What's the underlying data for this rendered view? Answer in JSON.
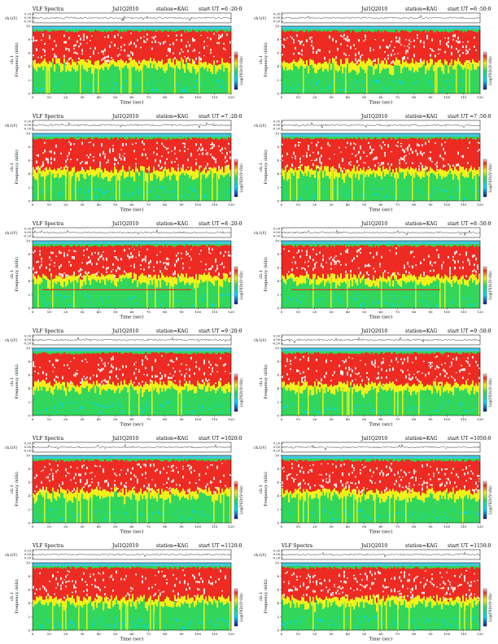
{
  "colors": {
    "low": "#00d9ff",
    "mid": "#31d65b",
    "yellow": "#f1f11b",
    "red": "#ee2b22",
    "white": "#ffffff",
    "topband": "#46c8dd"
  },
  "chart_data": [
    {
      "type": "heatmap",
      "title": "VLF Spectra",
      "date": "Jul1Q2010",
      "station": "station=KAG",
      "start_ut": "start  UT =6 :20:0",
      "ylabel_top": "ch.1(V)",
      "ylabel_main": "ch.1\nFrequency (kHz)",
      "xlabel": "Time  (sec)",
      "colorbar_label": "Log(PSD)(V²/Hz)",
      "x_range": [
        0,
        120
      ],
      "y_range": [
        0,
        10
      ],
      "y_ticks": [
        0,
        2,
        4,
        6,
        8,
        10
      ],
      "x_ticks": [
        0,
        10,
        20,
        30,
        40,
        50,
        60,
        70,
        80,
        90,
        100,
        110,
        120
      ],
      "top_ticks": [
        "0.20",
        "0.00",
        "-0.20"
      ]
    },
    {
      "type": "heatmap",
      "title": "",
      "date": "Jul1Q2010",
      "station": "station=KAG",
      "start_ut": "start  UT =6 :50:0",
      "ylabel_top": "ch.1(V)",
      "ylabel_main": "ch.1\nFrequency (kHz)",
      "xlabel": "Time  (sec)",
      "colorbar_label": "Log(PSD)(V²/Hz)",
      "x_range": [
        0,
        120
      ],
      "y_range": [
        0,
        10
      ],
      "y_ticks": [
        0,
        2,
        4,
        6,
        8,
        10
      ],
      "x_ticks": [
        0,
        10,
        20,
        30,
        40,
        50,
        60,
        70,
        80,
        90,
        100,
        110,
        120
      ],
      "top_ticks": [
        "0.20",
        "0.00",
        "-0.20"
      ]
    },
    {
      "type": "heatmap",
      "title": "VLF Spectra",
      "date": "Jul1Q2010",
      "station": "station=KAG",
      "start_ut": "start  UT =7 :20:0",
      "ylabel_top": "ch.1(V)",
      "ylabel_main": "ch.1\nFrequency (kHz)",
      "xlabel": "Time  (sec)",
      "colorbar_label": "Log(PSD)(V²/Hz)",
      "x_range": [
        0,
        120
      ],
      "y_range": [
        0,
        10
      ],
      "y_ticks": [
        0,
        2,
        4,
        6,
        8,
        10
      ],
      "x_ticks": [
        0,
        10,
        20,
        30,
        40,
        50,
        60,
        70,
        80,
        90,
        100,
        110,
        120
      ],
      "top_ticks": [
        "0.20",
        "0.00",
        "-0.20"
      ]
    },
    {
      "type": "heatmap",
      "title": "",
      "date": "Jul1Q2010",
      "station": "station=KAG",
      "start_ut": "start  UT =7 :50:0",
      "ylabel_top": "ch.1(V)",
      "ylabel_main": "ch.1\nFrequency (kHz)",
      "xlabel": "Time  (sec)",
      "colorbar_label": "Log(PSD)(V²/Hz)",
      "x_range": [
        0,
        120
      ],
      "y_range": [
        0,
        10
      ],
      "y_ticks": [
        0,
        2,
        4,
        6,
        8,
        10
      ],
      "x_ticks": [
        0,
        10,
        20,
        30,
        40,
        50,
        60,
        70,
        80,
        90,
        100,
        110,
        120
      ],
      "top_ticks": [
        "0.20",
        "0.00",
        "-0.20"
      ]
    },
    {
      "type": "heatmap",
      "title": "VLF Spectra",
      "date": "Jul1Q2010",
      "station": "station=KAG",
      "start_ut": "start  UT =8 :20:0",
      "ylabel_top": "ch.1(V)",
      "ylabel_main": "ch.1\nFrequency (kHz)",
      "xlabel": "Time  (sec)",
      "colorbar_label": "Log(PSD)(V²/Hz)",
      "x_range": [
        0,
        120
      ],
      "y_range": [
        0,
        10
      ],
      "y_ticks": [
        0,
        2,
        4,
        6,
        8,
        10
      ],
      "x_ticks": [
        0,
        10,
        20,
        30,
        40,
        50,
        60,
        70,
        80,
        90,
        100,
        110,
        120
      ],
      "top_ticks": [
        "0.20",
        "0.00",
        "-0.20"
      ]
    },
    {
      "type": "heatmap",
      "title": "",
      "date": "Jul1Q2010",
      "station": "station=KAG",
      "start_ut": "start  UT =8 :50:0",
      "ylabel_top": "ch.1(V)",
      "ylabel_main": "ch.1\nFrequency (kHz)",
      "xlabel": "Time  (sec)",
      "colorbar_label": "Log(PSD)(V²/Hz)",
      "x_range": [
        0,
        120
      ],
      "y_range": [
        0,
        10
      ],
      "y_ticks": [
        0,
        2,
        4,
        6,
        8,
        10
      ],
      "x_ticks": [
        0,
        10,
        20,
        30,
        40,
        50,
        60,
        70,
        80,
        90,
        100,
        110,
        120
      ],
      "top_ticks": [
        "0.20",
        "0.00",
        "-0.20"
      ]
    },
    {
      "type": "heatmap",
      "title": "VLF Spectra",
      "date": "Jul1Q2010",
      "station": "station=KAG",
      "start_ut": "start  UT =9 :20:0",
      "ylabel_top": "ch.1(V)",
      "ylabel_main": "ch.1\nFrequency (kHz)",
      "xlabel": "Time  (sec)",
      "colorbar_label": "Log(PSD)(V²/Hz)",
      "x_range": [
        0,
        120
      ],
      "y_range": [
        0,
        10
      ],
      "y_ticks": [
        0,
        2,
        4,
        6,
        8,
        10
      ],
      "x_ticks": [
        0,
        10,
        20,
        30,
        40,
        50,
        60,
        70,
        80,
        90,
        100,
        110,
        120
      ],
      "top_ticks": [
        "0.20",
        "0.00",
        "-0.20"
      ]
    },
    {
      "type": "heatmap",
      "title": "",
      "date": "Jul1Q2010",
      "station": "station=KAG",
      "start_ut": "start  UT =9 :50:0",
      "ylabel_top": "ch.1(V)",
      "ylabel_main": "ch.1\nFrequency (kHz)",
      "xlabel": "Time  (sec)",
      "colorbar_label": "Log(PSD)(V²/Hz)",
      "x_range": [
        0,
        120
      ],
      "y_range": [
        0,
        10
      ],
      "y_ticks": [
        0,
        2,
        4,
        6,
        8,
        10
      ],
      "x_ticks": [
        0,
        10,
        20,
        30,
        40,
        50,
        60,
        70,
        80,
        90,
        100,
        110,
        120
      ],
      "top_ticks": [
        "0.20",
        "0.00",
        "-0.20"
      ]
    },
    {
      "type": "heatmap",
      "title": "VLF Spectra",
      "date": "Jul1Q2010",
      "station": "station=KAG",
      "start_ut": "start  UT =1020:0",
      "ylabel_top": "ch.1(V)",
      "ylabel_main": "ch.1\nFrequency (kHz)",
      "xlabel": "Time  (sec)",
      "colorbar_label": "Log(PSD)(V²/Hz)",
      "x_range": [
        0,
        120
      ],
      "y_range": [
        0,
        10
      ],
      "y_ticks": [
        0,
        2,
        4,
        6,
        8,
        10
      ],
      "x_ticks": [
        0,
        10,
        20,
        30,
        40,
        50,
        60,
        70,
        80,
        90,
        100,
        110,
        120
      ],
      "top_ticks": [
        "0.20",
        "0.00",
        "-0.20"
      ]
    },
    {
      "type": "heatmap",
      "title": "",
      "date": "Jul1Q2010",
      "station": "station=KAG",
      "start_ut": "start  UT =1050:0",
      "ylabel_top": "ch.1(V)",
      "ylabel_main": "ch.1\nFrequency (kHz)",
      "xlabel": "Time  (sec)",
      "colorbar_label": "Log(PSD)(V²/Hz)",
      "x_range": [
        0,
        120
      ],
      "y_range": [
        0,
        10
      ],
      "y_ticks": [
        0,
        2,
        4,
        6,
        8,
        10
      ],
      "x_ticks": [
        0,
        10,
        20,
        30,
        40,
        50,
        60,
        70,
        80,
        90,
        100,
        110,
        120
      ],
      "top_ticks": [
        "0.20",
        "0.00",
        "-0.20"
      ]
    },
    {
      "type": "heatmap",
      "title": "VLF Spectra",
      "date": "Jul1Q2010",
      "station": "station=KAG",
      "start_ut": "start  UT =1120:0",
      "ylabel_top": "ch.1(V)",
      "ylabel_main": "ch.1\nFrequency (kHz)",
      "xlabel": "Time  (sec)",
      "colorbar_label": "Log(PSD)(V²/Hz)",
      "x_range": [
        0,
        120
      ],
      "y_range": [
        0,
        10
      ],
      "y_ticks": [
        0,
        2,
        4,
        6,
        8,
        10
      ],
      "x_ticks": [
        0,
        10,
        20,
        30,
        40,
        50,
        60,
        70,
        80,
        90,
        100,
        110,
        120
      ],
      "top_ticks": [
        "0.20",
        "0.00",
        "-0.20"
      ]
    },
    {
      "type": "heatmap",
      "title": "VLF Spectra",
      "date": "Jul1Q2010",
      "station": "station=KAG",
      "start_ut": "start  UT =1150:0",
      "ylabel_top": "ch.1(V)",
      "ylabel_main": "ch.1\nFrequency (kHz)",
      "xlabel": "Time  (sec)",
      "colorbar_label": "Log(PSD)(V²/Hz)",
      "x_range": [
        0,
        120
      ],
      "y_range": [
        0,
        10
      ],
      "y_ticks": [
        0,
        2,
        4,
        6,
        8,
        10
      ],
      "x_ticks": [
        0,
        10,
        20,
        30,
        40,
        50,
        60,
        70,
        80,
        90,
        100,
        110,
        120
      ],
      "top_ticks": [
        "0.20",
        "0.00",
        "-0.20"
      ]
    }
  ]
}
